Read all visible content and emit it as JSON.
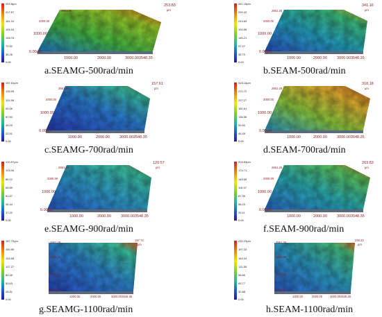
{
  "panels": [
    {
      "caption": "a.SEAMG-500rad/min",
      "ticks": [
        "253.8μm",
        "217.57",
        "181.31",
        "145.04",
        "108.78",
        "72.52",
        "36.26",
        "0.00"
      ],
      "ax_top": "2661.26",
      "ax_mid": "2000.00",
      "ax_left": "1000.00",
      "ax_origin": "0.00μm",
      "ax_x1": "1000.00",
      "ax_x2": "2000.00",
      "ax_x3": "3000.003548.35",
      "ax_peak": "253.83",
      "ax_peak_unit": "μm"
    },
    {
      "caption": "b.SEAM-500rad/min",
      "ticks": [
        "341.16μm",
        "292.42",
        "243.69",
        "194.95",
        "146.21",
        "97.47",
        "48.73",
        "0.00"
      ],
      "ax_top": "2661.26",
      "ax_mid": "2000.00",
      "ax_left": "1000.00",
      "ax_origin": "0.00μm",
      "ax_x1": "1000.00",
      "ax_x2": "2000.00",
      "ax_x3": "3000.003548.35",
      "ax_peak": "341.16",
      "ax_peak_unit": "μm"
    },
    {
      "caption": "c.SEAMG-700rad/min",
      "ticks": [
        "157.61μm",
        "135.09",
        "112.58",
        "90.06",
        "67.54",
        "45.03",
        "22.51",
        "0.00"
      ],
      "ax_top": "2661.26",
      "ax_mid": "2000.00",
      "ax_left": "1000.00",
      "ax_origin": "0.00μm",
      "ax_x1": "1000.00",
      "ax_x2": "2000.00",
      "ax_x3": "3000.003548.35",
      "ax_peak": "157.61",
      "ax_peak_unit": "μm"
    },
    {
      "caption": "d.SEAM-700rad/min",
      "ticks": [
        "318.18μm",
        "272.72",
        "227.27",
        "181.81",
        "136.36",
        "90.90",
        "45.45",
        "0.00"
      ],
      "ax_top": "2661.26",
      "ax_mid": "2000.00",
      "ax_left": "1000.00",
      "ax_origin": "0.00μm",
      "ax_x1": "1000.00",
      "ax_x2": "2000.00",
      "ax_x3": "3000.003548.35",
      "ax_peak": "318.18",
      "ax_peak_unit": "μm"
    },
    {
      "caption": "e.SEAMG-900rad/min",
      "ticks": [
        "120.57μm",
        "103.34",
        "86.12",
        "68.89",
        "51.67",
        "34.44",
        "17.22",
        "0.00"
      ],
      "ax_top": "2661.26",
      "ax_mid": "2000.00",
      "ax_left": "1000.00",
      "ax_origin": "0.00μm",
      "ax_x1": "1000.00",
      "ax_x2": "2000.00",
      "ax_x3": "3000.003548.35",
      "ax_peak": "120.57",
      "ax_peak_unit": "μm"
    },
    {
      "caption": "f.SEAM-900rad/min",
      "ticks": [
        "203.83μm",
        "174.71",
        "145.59",
        "116.47",
        "87.35",
        "58.23",
        "29.11",
        "0.00"
      ],
      "ax_top": "2661.26",
      "ax_mid": "2000.00",
      "ax_left": "1000.00",
      "ax_origin": "0.00μm",
      "ax_x1": "1000.00",
      "ax_x2": "2000.00",
      "ax_x3": "3000.003548.35",
      "ax_peak": "203.83",
      "ax_peak_unit": "μm"
    },
    {
      "caption": "g.SEAMG-1100rad/min",
      "ticks": [
        "187.72μm",
        "160.90",
        "134.08",
        "107.27",
        "80.45",
        "53.63",
        "26.81",
        "0.00"
      ],
      "ax_top": "2661.26",
      "ax_mid": "2000.00",
      "ax_left": "1000.00",
      "ax_origin": "0.00μm",
      "ax_x1": "1000.00",
      "ax_x2": "2000.00",
      "ax_x3": "3000.003548.35",
      "ax_peak": "187.72",
      "ax_peak_unit": "μm"
    },
    {
      "caption": "h.SEAM-1100rad/min",
      "ticks": [
        "230.22μm",
        "197.33",
        "164.44",
        "131.55",
        "98.66",
        "65.77",
        "32.88",
        "0.00"
      ],
      "ax_top": "2661.26",
      "ax_mid": "2000.00",
      "ax_left": "1000.00",
      "ax_origin": "0.00μm",
      "ax_x1": "1000.00",
      "ax_x2": "2000.00",
      "ax_x3": "3000.003548.35",
      "ax_peak": "230.22",
      "ax_peak_unit": "μm"
    }
  ],
  "colors": {
    "surface_high": "#e8401c",
    "surface_mid": "#6fcf3a",
    "surface_low": "#1c4fc8",
    "label": "#8a1a1a"
  }
}
